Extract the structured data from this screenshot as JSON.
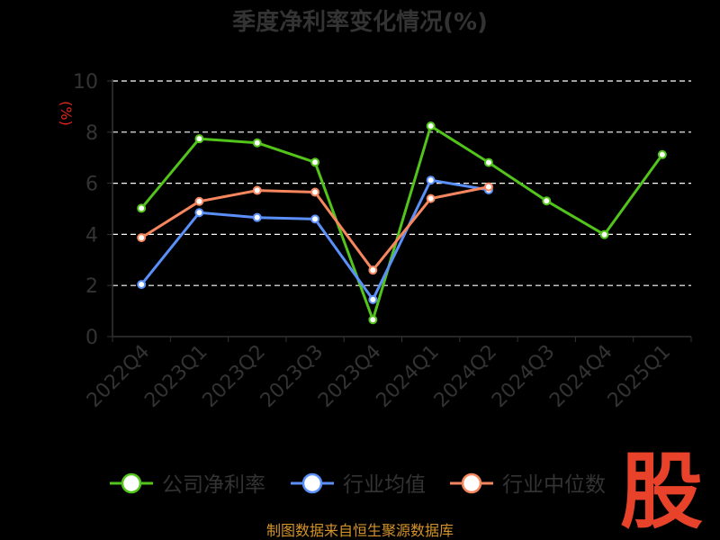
{
  "chart_data": {
    "type": "line",
    "title": "季度净利率变化情况(%)",
    "ylabel": "(%)",
    "categories": [
      "2022Q4",
      "2023Q1",
      "2023Q2",
      "2023Q3",
      "2023Q4",
      "2024Q1",
      "2024Q2",
      "2024Q3",
      "2024Q4",
      "2025Q1"
    ],
    "ylim": [
      0,
      10
    ],
    "yticks": [
      "0",
      "2",
      "4",
      "6",
      "8",
      "10"
    ],
    "grid": true,
    "legend_position": "bottom",
    "series": [
      {
        "name": "公司净利率",
        "color": "#52c41a",
        "values": [
          5.02,
          7.74,
          7.58,
          6.82,
          0.66,
          8.24,
          6.81,
          5.31,
          3.99,
          7.12
        ]
      },
      {
        "name": "行业均值",
        "color": "#5b8ff9",
        "values": [
          2.04,
          4.85,
          4.66,
          4.6,
          1.45,
          6.12,
          5.74,
          null,
          null,
          null
        ]
      },
      {
        "name": "行业中位数",
        "color": "#f6865e",
        "values": [
          3.87,
          5.29,
          5.72,
          5.65,
          2.6,
          5.4,
          5.86,
          null,
          null,
          null
        ]
      }
    ]
  },
  "source": "制图数据来自恒生聚源数据库",
  "logo_text": "股"
}
